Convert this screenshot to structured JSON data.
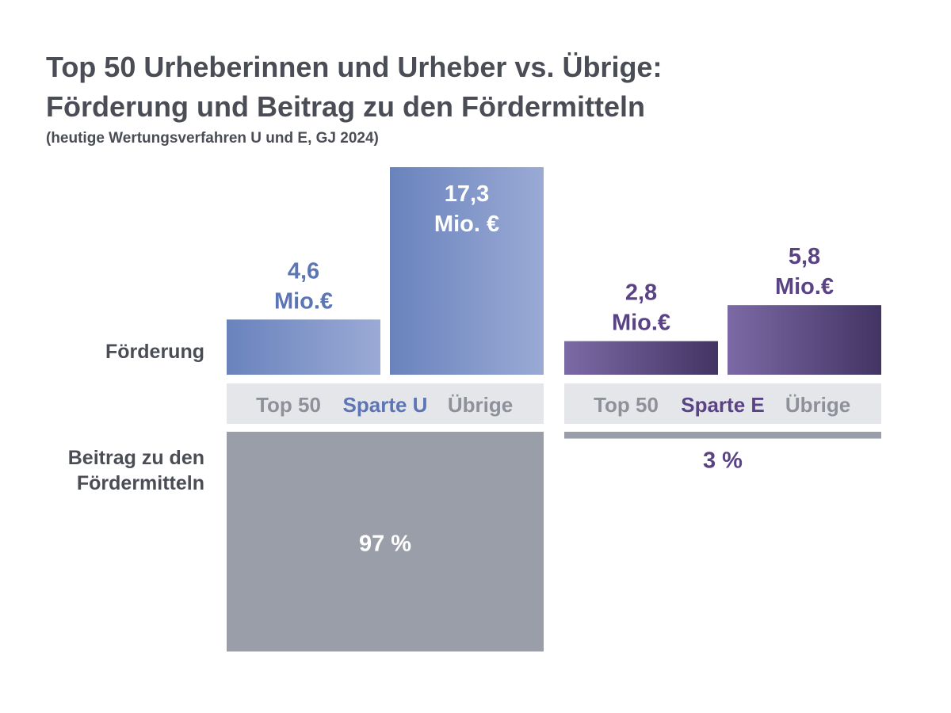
{
  "title_line1": "Top 50 Urheberinnen und Urheber vs. Übrige:",
  "title_line2": "Förderung und Beitrag zu den Fördermitteln",
  "subtitle": "(heutige Wertungsverfahren U und E, GJ 2024)",
  "row_labels": {
    "foerderung": "Förderung",
    "beitrag_line1": "Beitrag zu den",
    "beitrag_line2": "Fördermitteln"
  },
  "colors": {
    "sparte_u": "#5b75b5",
    "sparte_e": "#5a4385",
    "axis_band": "#e5e6ea",
    "axis_text": "#8e9199",
    "beitrag_bar": "#9a9ea8",
    "beitrag_text_in_bar": "#ffffff"
  },
  "chart_data": {
    "type": "bar",
    "unit": "Mio. €",
    "groups": [
      {
        "name": "Sparte U",
        "color": "#5b75b5",
        "categories": [
          "Top 50",
          "Übrige"
        ],
        "foerderung": [
          4.6,
          17.3
        ],
        "foerderung_labels": [
          [
            "4,6",
            "Mio.€"
          ],
          [
            "17,3",
            "Mio. €"
          ]
        ],
        "beitrag_percent": 97,
        "beitrag_label": "97 %"
      },
      {
        "name": "Sparte E",
        "color": "#5a4385",
        "categories": [
          "Top 50",
          "Übrige"
        ],
        "foerderung": [
          2.8,
          5.8
        ],
        "foerderung_labels": [
          [
            "2,8",
            "Mio.€"
          ],
          [
            "5,8",
            "Mio.€"
          ]
        ],
        "beitrag_percent": 3,
        "beitrag_label": "3 %"
      }
    ],
    "grid": false
  }
}
